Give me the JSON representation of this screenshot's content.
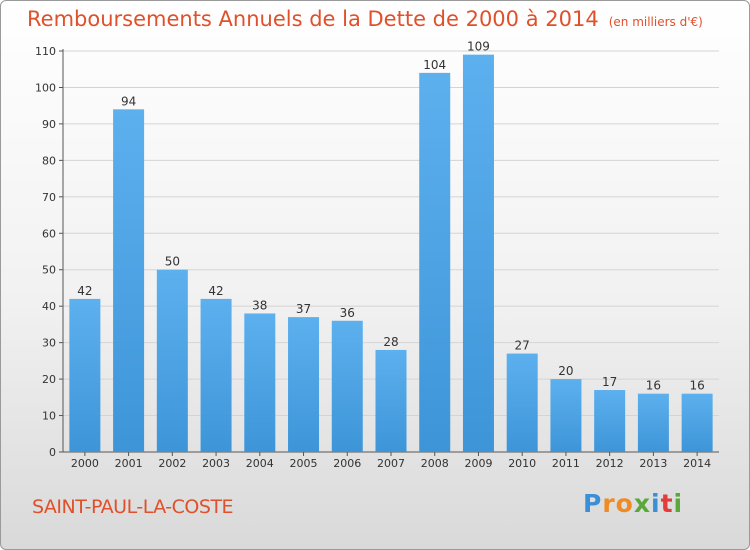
{
  "chart_data": {
    "type": "bar",
    "title": "Remboursements Annuels de la Dette de 2000 à 2014",
    "unit_label": "(en milliers d'€)",
    "categories": [
      "2000",
      "2001",
      "2002",
      "2003",
      "2004",
      "2005",
      "2006",
      "2007",
      "2008",
      "2009",
      "2010",
      "2011",
      "2012",
      "2013",
      "2014"
    ],
    "values": [
      42,
      94,
      50,
      42,
      38,
      37,
      36,
      28,
      104,
      109,
      27,
      20,
      17,
      16,
      16
    ],
    "ylim": [
      0,
      110
    ],
    "yticks": [
      0,
      10,
      20,
      30,
      40,
      50,
      60,
      70,
      80,
      90,
      100,
      110
    ],
    "grid": true,
    "bar_color": "#3d95d8"
  },
  "commune": "SAINT-PAUL-LA-COSTE",
  "brand": {
    "text": "Proxiti",
    "letter_colors": [
      "#3a8fd6",
      "#f08a22",
      "#f08a22",
      "#5aa83a",
      "#3a8fd6",
      "#e23c3c",
      "#5aa83a"
    ]
  }
}
